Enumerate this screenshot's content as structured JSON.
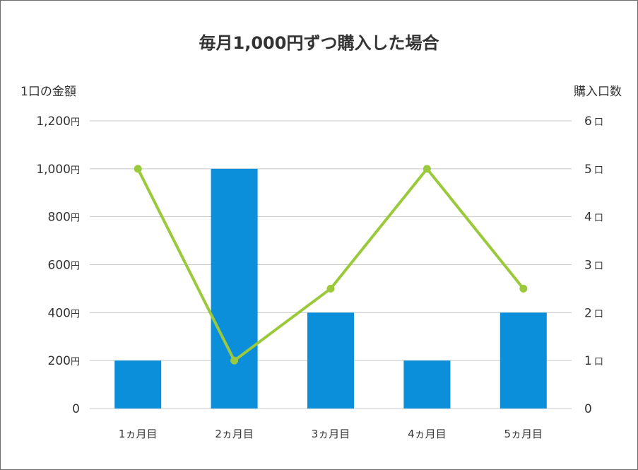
{
  "colors": {
    "bar": "#0b8fda",
    "line": "#9bc93c",
    "grid": "#c8c8c8",
    "text": "#333333",
    "border": "#6b6b6b"
  },
  "chart_data": {
    "type": "bar",
    "title": "毎月1,000円ずつ購入した場合",
    "ylabel": "1口の金額",
    "y2label": "購入口数",
    "categories": [
      "1ヵ月目",
      "2ヵ月目",
      "3ヵ月目",
      "4ヵ月目",
      "5ヵ月目"
    ],
    "ylim": [
      0,
      1200
    ],
    "y2lim": [
      0,
      6
    ],
    "y_ticks": [
      {
        "value": 0,
        "label": "0",
        "unit": ""
      },
      {
        "value": 200,
        "label": "200",
        "unit": "円"
      },
      {
        "value": 400,
        "label": "400",
        "unit": "円"
      },
      {
        "value": 600,
        "label": "600",
        "unit": "円"
      },
      {
        "value": 800,
        "label": "800",
        "unit": "円"
      },
      {
        "value": 1000,
        "label": "1,000",
        "unit": "円"
      },
      {
        "value": 1200,
        "label": "1,200",
        "unit": "円"
      }
    ],
    "y2_ticks": [
      {
        "value": 0,
        "label": "0",
        "unit": ""
      },
      {
        "value": 1,
        "label": "1",
        "unit": "口"
      },
      {
        "value": 2,
        "label": "2",
        "unit": "口"
      },
      {
        "value": 3,
        "label": "3",
        "unit": "口"
      },
      {
        "value": 4,
        "label": "4",
        "unit": "口"
      },
      {
        "value": 5,
        "label": "5",
        "unit": "口"
      },
      {
        "value": 6,
        "label": "6",
        "unit": "口"
      }
    ],
    "series": [
      {
        "type": "bar",
        "axis": "left",
        "values": [
          200,
          1000,
          400,
          200,
          400
        ]
      },
      {
        "type": "line",
        "axis": "right",
        "values": [
          5,
          1,
          2.5,
          5,
          2.5
        ]
      }
    ],
    "grid": true,
    "legend": "none"
  }
}
